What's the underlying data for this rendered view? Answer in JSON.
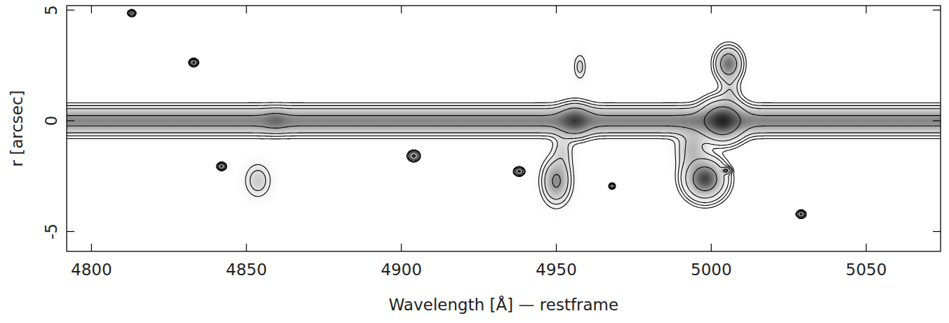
{
  "chart_data": {
    "type": "spectrum_2d",
    "x_label": "Wavelength [Å] — restframe",
    "y_label": "r [arcsec]",
    "xlim": [
      4792,
      5074
    ],
    "ylim": [
      -5.9,
      5.2
    ],
    "xticks": [
      4800,
      4850,
      4900,
      4950,
      5000,
      5050
    ],
    "yticks": [
      -5,
      0,
      5
    ],
    "color": "#000000",
    "contour_levels": [
      0.07,
      0.15,
      0.3,
      0.8,
      2.5
    ],
    "continuum": {
      "r": 0,
      "width_r": 0.35,
      "intensity": 1
    },
    "sources": [
      {
        "wavelength": 5003.6,
        "r": 0,
        "width_wavelength": 3.5,
        "width_r": 0.45,
        "intensity": 6
      },
      {
        "wavelength": 4956,
        "r": 0,
        "width_wavelength": 3,
        "width_r": 0.4,
        "intensity": 1.5
      },
      {
        "wavelength": 4859.4,
        "r": 0,
        "width_wavelength": 2.5,
        "width_r": 0.3,
        "intensity": 0.3
      },
      {
        "wavelength": 4998,
        "r": -2.63,
        "width_wavelength": 3.2,
        "width_r": 0.45,
        "intensity": 5
      },
      {
        "wavelength": 5005.6,
        "r": 2.57,
        "width_wavelength": 2.3,
        "width_r": 0.4,
        "intensity": 1.5
      },
      {
        "wavelength": 4950,
        "r": -2.73,
        "width_wavelength": 2.5,
        "width_r": 0.55,
        "intensity": 0.9
      },
      {
        "wavelength": 4957.6,
        "r": 2.44,
        "width_wavelength": 1.2,
        "width_r": 0.35,
        "intensity": 0.2
      },
      {
        "wavelength": 4853.7,
        "r": -2.7,
        "width_wavelength": 2.5,
        "width_r": 0.45,
        "intensity": 0.25
      },
      {
        "wavelength": 4952,
        "r": -1.4,
        "width_wavelength": 2,
        "width_r": 0.6,
        "intensity": 0.2
      },
      {
        "wavelength": 4994,
        "r": -1.3,
        "width_wavelength": 3,
        "width_r": 0.7,
        "intensity": 0.4
      },
      {
        "wavelength": 5006,
        "r": 1.3,
        "width_wavelength": 2,
        "width_r": 0.5,
        "intensity": 0.25
      },
      {
        "wavelength": 4813,
        "r": 4.86,
        "width_wavelength": 0.5,
        "width_r": 0.06,
        "intensity": 3
      },
      {
        "wavelength": 4833,
        "r": 2.63,
        "width_wavelength": 0.6,
        "width_r": 0.07,
        "intensity": 3
      },
      {
        "wavelength": 4842,
        "r": -2.06,
        "width_wavelength": 0.6,
        "width_r": 0.07,
        "intensity": 3
      },
      {
        "wavelength": 4904,
        "r": -1.59,
        "width_wavelength": 0.8,
        "width_r": 0.1,
        "intensity": 3
      },
      {
        "wavelength": 4938,
        "r": -2.29,
        "width_wavelength": 0.7,
        "width_r": 0.08,
        "intensity": 3
      },
      {
        "wavelength": 4968,
        "r": -2.95,
        "width_wavelength": 0.4,
        "width_r": 0.05,
        "intensity": 3
      },
      {
        "wavelength": 5004.7,
        "r": -2.25,
        "width_wavelength": 0.8,
        "width_r": 0.08,
        "intensity": 3
      },
      {
        "wavelength": 5029,
        "r": -4.22,
        "width_wavelength": 0.6,
        "width_r": 0.07,
        "intensity": 3
      }
    ]
  }
}
